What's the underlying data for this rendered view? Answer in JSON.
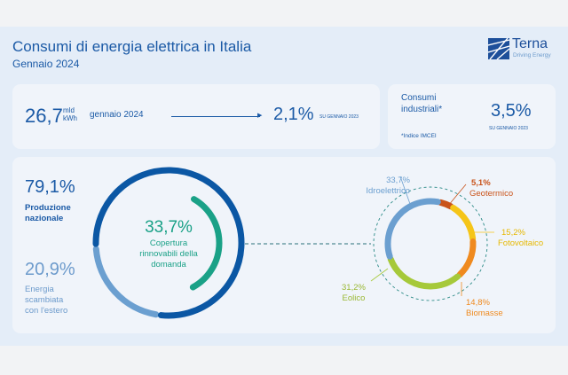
{
  "header": {
    "title": "Consumi di energia elettrica in Italia",
    "subtitle": "Gennaio 2024",
    "logo": {
      "name": "Terna",
      "tagline": "Driving Energy"
    }
  },
  "consumption": {
    "value": "26,7",
    "unit_top": "mld",
    "unit_bottom": "kWh",
    "period": "gennaio 2024",
    "change": "2,1%",
    "change_ref": "SU GENNAIO 2023"
  },
  "industrial": {
    "label_line1": "Consumi",
    "label_line2": "industriali*",
    "note": "*Indice IMCEI",
    "change": "3,5%",
    "change_ref": "SU GENNAIO 2023"
  },
  "colors": {
    "dark_blue": "#0b57a4",
    "light_blue": "#6b9fd0",
    "green": "#1aa187",
    "hydro": "#6b9fd0",
    "geo": "#c9531a",
    "pv": "#f5c518",
    "bio": "#ef8a1f",
    "wind": "#a6c93a"
  },
  "chart_data": [
    {
      "type": "pie",
      "variant": "donut",
      "series": [
        {
          "name": "Produzione nazionale",
          "value": 79.1,
          "label": "79,1%",
          "desc_line1": "Produzione",
          "desc_line2": "nazionale"
        },
        {
          "name": "Energia scambiata con l'estero",
          "value": 20.9,
          "label": "20,9%",
          "desc_line1": "Energia",
          "desc_line2": "scambiata",
          "desc_line3": "con l'estero"
        }
      ],
      "inner": {
        "value": 33.7,
        "label": "33,7%",
        "desc_line1": "Copertura",
        "desc_line2": "rinnovabili della",
        "desc_line3": "domanda"
      }
    },
    {
      "type": "pie",
      "variant": "donut",
      "series": [
        {
          "name": "Geotermico",
          "value": 5.1,
          "label": "5,1%"
        },
        {
          "name": "Fotovoltaico",
          "value": 15.2,
          "label": "15,2%"
        },
        {
          "name": "Biomasse",
          "value": 14.8,
          "label": "14,8%"
        },
        {
          "name": "Eolico",
          "value": 31.2,
          "label": "31,2%"
        },
        {
          "name": "Idroelettrico",
          "value": 33.7,
          "label": "33,7%"
        }
      ]
    }
  ]
}
